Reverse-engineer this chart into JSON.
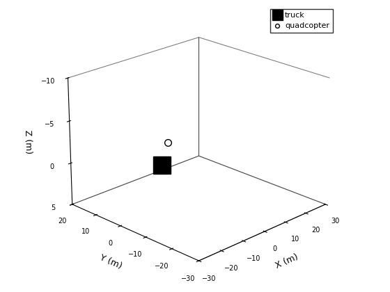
{
  "title": "",
  "xlabel": "X (m)",
  "ylabel": "Y (m)",
  "zlabel": "Z (m)",
  "xlim": [
    -30,
    30
  ],
  "ylim": [
    -30,
    20
  ],
  "zlim": [
    -10,
    5
  ],
  "truck_x": [
    0
  ],
  "truck_y": [
    10
  ],
  "truck_z": [
    2
  ],
  "quadcopter_x": [
    3
  ],
  "quadcopter_y": [
    10
  ],
  "quadcopter_z": [
    -0.5
  ],
  "truck_marker": "s",
  "truck_markersize": 18,
  "truck_color": "black",
  "quadcopter_marker": "o",
  "quadcopter_markersize": 7,
  "quadcopter_color": "black",
  "legend_loc": "upper right",
  "elev": 22,
  "azim": -135,
  "background_color": "white",
  "figsize": [
    5.6,
    4.2
  ],
  "dpi": 100,
  "xticks": [
    -30,
    -20,
    -10,
    0,
    10,
    20,
    30
  ],
  "yticks": [
    -30,
    -20,
    -10,
    0,
    10,
    20
  ],
  "zticks": [
    -10,
    -5,
    0,
    5
  ]
}
